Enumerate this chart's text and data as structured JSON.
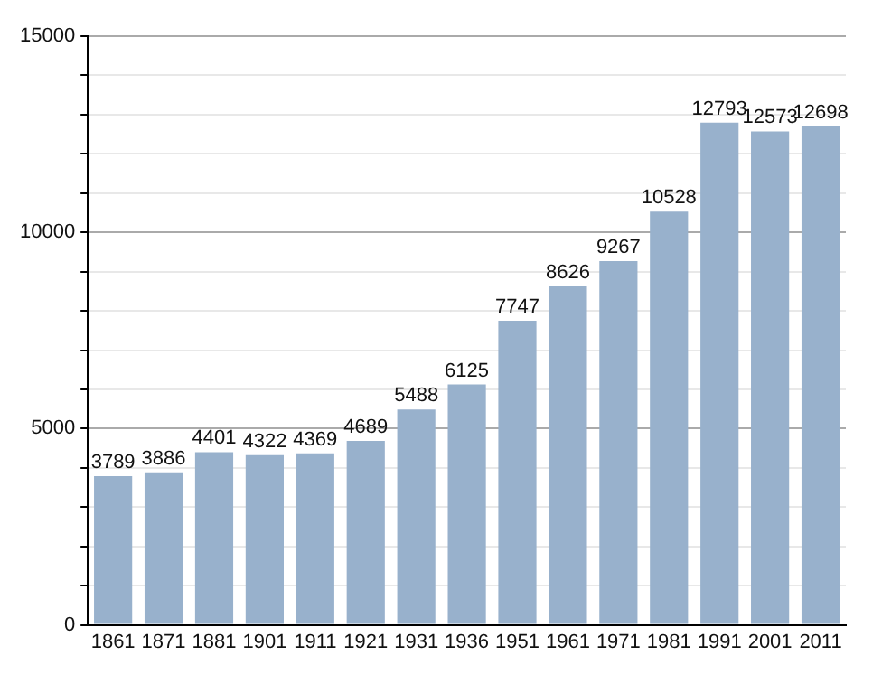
{
  "chart_data": {
    "type": "bar",
    "categories": [
      "1861",
      "1871",
      "1881",
      "1901",
      "1911",
      "1921",
      "1931",
      "1936",
      "1951",
      "1961",
      "1971",
      "1981",
      "1991",
      "2001",
      "2011"
    ],
    "values": [
      3789,
      3886,
      4401,
      4322,
      4369,
      4689,
      5488,
      6125,
      7747,
      8626,
      9267,
      10528,
      12793,
      12573,
      12698
    ],
    "color": "#98b1cc",
    "ylim": [
      0,
      15000
    ],
    "yticks": [
      0,
      {
        "value": 1000,
        "label": null
      },
      {
        "value": 2000,
        "label": null
      },
      {
        "value": 3000,
        "label": null
      },
      {
        "value": 4000,
        "label": null
      },
      5000,
      {
        "value": 6000,
        "label": null
      },
      {
        "value": 7000,
        "label": null
      },
      {
        "value": 8000,
        "label": null
      },
      {
        "value": 9000,
        "label": null
      },
      10000,
      {
        "value": 11000,
        "label": null
      },
      {
        "value": 12000,
        "label": null
      },
      {
        "value": 13000,
        "label": null
      },
      {
        "value": 14000,
        "label": null
      },
      15000
    ],
    "grid": "y",
    "data_labels": true,
    "legend": false
  }
}
